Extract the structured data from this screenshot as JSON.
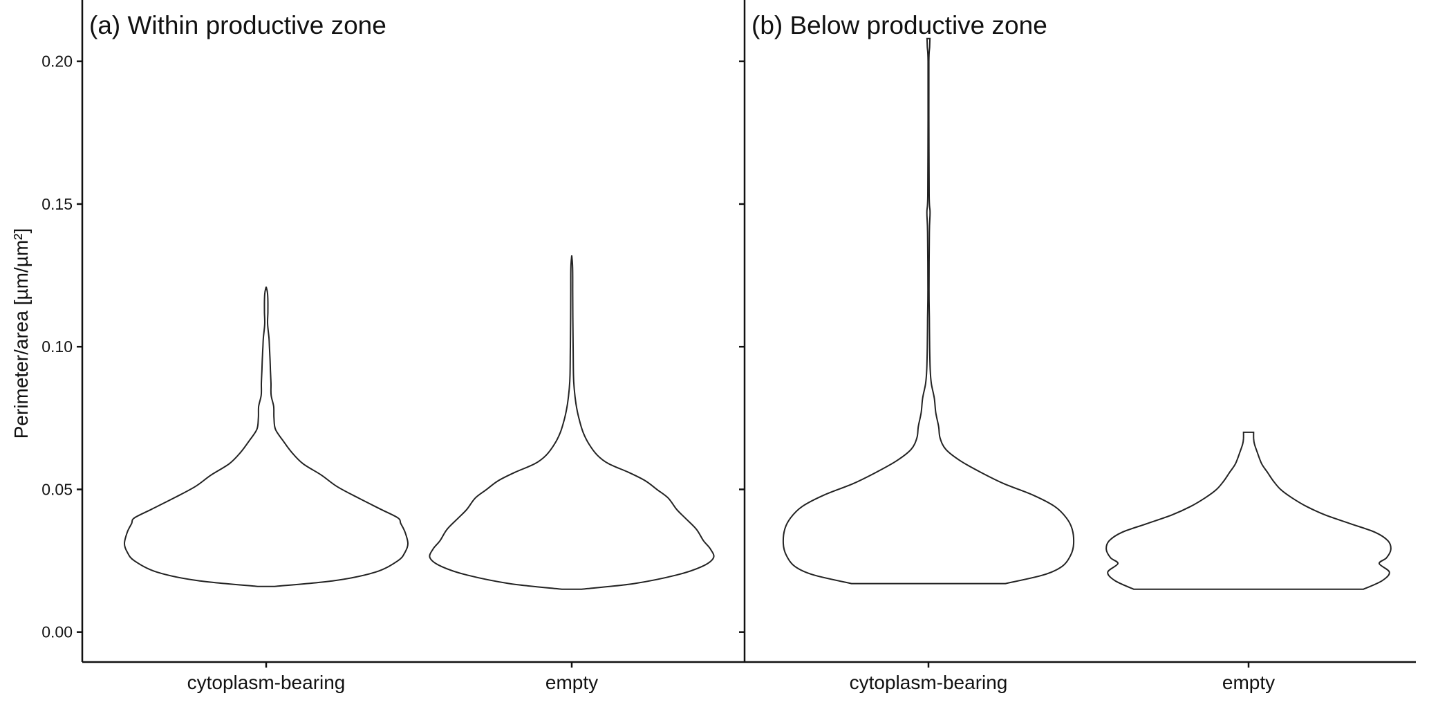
{
  "chart_data": {
    "type": "violin",
    "ylabel": "Perimeter/area [µm/µm²]",
    "ylim": [
      -0.0105,
      0.2215
    ],
    "yticks": [
      0.0,
      0.05,
      0.1,
      0.15,
      0.2
    ],
    "ytick_labels": [
      "0.00",
      "0.05",
      "0.10",
      "0.15",
      "0.20"
    ],
    "grid": false,
    "panels": [
      {
        "title": "(a) Within productive zone",
        "categories": [
          "cytoplasm-bearing",
          "empty"
        ],
        "violins": [
          {
            "category": "cytoplasm-bearing",
            "min": 0.016,
            "max": 0.121,
            "profile": [
              [
                0.016,
                0.06
              ],
              [
                0.018,
                0.48
              ],
              [
                0.021,
                0.77
              ],
              [
                0.025,
                0.93
              ],
              [
                0.028,
                0.98
              ],
              [
                0.031,
                1.0
              ],
              [
                0.035,
                0.98
              ],
              [
                0.038,
                0.95
              ],
              [
                0.04,
                0.93
              ],
              [
                0.043,
                0.81
              ],
              [
                0.047,
                0.65
              ],
              [
                0.051,
                0.5
              ],
              [
                0.055,
                0.39
              ],
              [
                0.059,
                0.26
              ],
              [
                0.063,
                0.18
              ],
              [
                0.067,
                0.12
              ],
              [
                0.071,
                0.066
              ],
              [
                0.075,
                0.055
              ],
              [
                0.079,
                0.053
              ],
              [
                0.083,
                0.035
              ],
              [
                0.087,
                0.034
              ],
              [
                0.092,
                0.03
              ],
              [
                0.097,
                0.026
              ],
              [
                0.1,
                0.023
              ],
              [
                0.103,
                0.02
              ],
              [
                0.108,
                0.01
              ],
              [
                0.112,
                0.012
              ],
              [
                0.116,
                0.012
              ],
              [
                0.119,
                0.009
              ],
              [
                0.121,
                0.0
              ]
            ]
          },
          {
            "category": "empty",
            "min": 0.015,
            "max": 0.132,
            "profile": [
              [
                0.015,
                0.07
              ],
              [
                0.017,
                0.44
              ],
              [
                0.02,
                0.74
              ],
              [
                0.023,
                0.92
              ],
              [
                0.026,
                1.0
              ],
              [
                0.029,
                0.98
              ],
              [
                0.032,
                0.93
              ],
              [
                0.036,
                0.88
              ],
              [
                0.04,
                0.8
              ],
              [
                0.043,
                0.74
              ],
              [
                0.047,
                0.68
              ],
              [
                0.05,
                0.6
              ],
              [
                0.053,
                0.52
              ],
              [
                0.056,
                0.4
              ],
              [
                0.059,
                0.26
              ],
              [
                0.062,
                0.18
              ],
              [
                0.066,
                0.12
              ],
              [
                0.07,
                0.08
              ],
              [
                0.075,
                0.05
              ],
              [
                0.08,
                0.03
              ],
              [
                0.085,
                0.018
              ],
              [
                0.09,
                0.012
              ],
              [
                0.1,
                0.01
              ],
              [
                0.11,
                0.008
              ],
              [
                0.12,
                0.007
              ],
              [
                0.128,
                0.006
              ],
              [
                0.132,
                0.0
              ]
            ]
          }
        ]
      },
      {
        "title": "(b) Below productive zone",
        "categories": [
          "cytoplasm-bearing",
          "empty"
        ],
        "violins": [
          {
            "category": "cytoplasm-bearing",
            "min": 0.017,
            "max": 0.208,
            "profile": [
              [
                0.017,
                0.53
              ],
              [
                0.02,
                0.79
              ],
              [
                0.023,
                0.92
              ],
              [
                0.027,
                0.98
              ],
              [
                0.031,
                1.0
              ],
              [
                0.036,
                0.99
              ],
              [
                0.04,
                0.95
              ],
              [
                0.044,
                0.87
              ],
              [
                0.048,
                0.72
              ],
              [
                0.052,
                0.52
              ],
              [
                0.056,
                0.36
              ],
              [
                0.06,
                0.22
              ],
              [
                0.064,
                0.12
              ],
              [
                0.068,
                0.08
              ],
              [
                0.072,
                0.07
              ],
              [
                0.077,
                0.05
              ],
              [
                0.082,
                0.04
              ],
              [
                0.087,
                0.02
              ],
              [
                0.092,
                0.012
              ],
              [
                0.1,
                0.008
              ],
              [
                0.11,
                0.006
              ],
              [
                0.12,
                0.004
              ],
              [
                0.14,
                0.006
              ],
              [
                0.147,
                0.011
              ],
              [
                0.153,
                0.005
              ],
              [
                0.18,
                0.003
              ],
              [
                0.2,
                0.003
              ],
              [
                0.205,
                0.008
              ],
              [
                0.208,
                0.01
              ]
            ]
          },
          {
            "category": "empty",
            "min": 0.015,
            "max": 0.07,
            "profile": [
              [
                0.015,
                0.79
              ],
              [
                0.018,
                0.92
              ],
              [
                0.021,
                0.97
              ],
              [
                0.024,
                0.9
              ],
              [
                0.026,
                0.95
              ],
              [
                0.029,
                0.98
              ],
              [
                0.032,
                0.96
              ],
              [
                0.035,
                0.87
              ],
              [
                0.038,
                0.7
              ],
              [
                0.041,
                0.53
              ],
              [
                0.044,
                0.4
              ],
              [
                0.047,
                0.3
              ],
              [
                0.05,
                0.22
              ],
              [
                0.053,
                0.17
              ],
              [
                0.056,
                0.13
              ],
              [
                0.059,
                0.09
              ],
              [
                0.063,
                0.06
              ],
              [
                0.066,
                0.04
              ],
              [
                0.068,
                0.035
              ],
              [
                0.07,
                0.035
              ]
            ]
          }
        ]
      }
    ]
  }
}
